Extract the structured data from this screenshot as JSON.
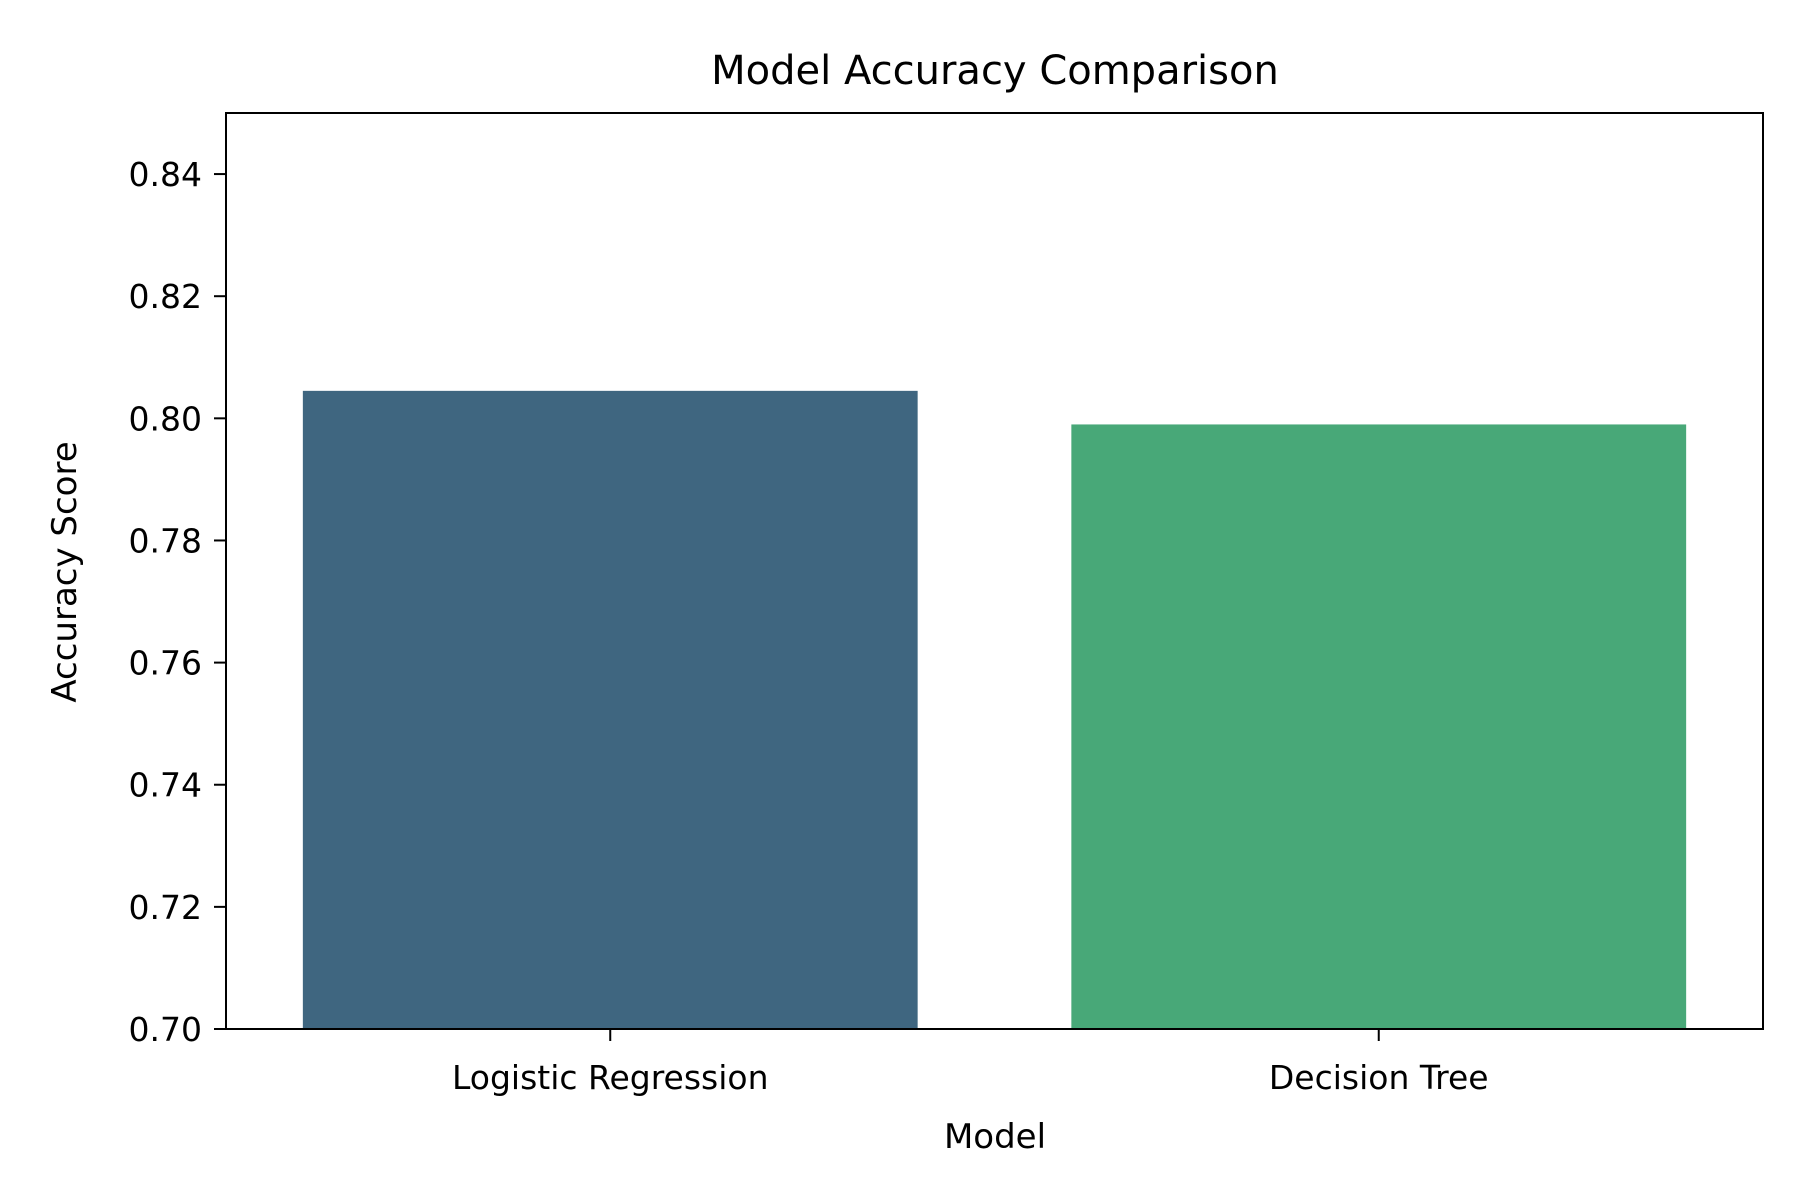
{
  "chart_data": {
    "type": "bar",
    "title": "Model Accuracy Comparison",
    "xlabel": "Model",
    "ylabel": "Accuracy Score",
    "categories": [
      "Logistic Regression",
      "Decision Tree"
    ],
    "values": [
      0.8045,
      0.799
    ],
    "ylim": [
      0.7,
      0.85
    ],
    "yticks": [
      0.7,
      0.72,
      0.74,
      0.76,
      0.78,
      0.8,
      0.82,
      0.84
    ],
    "ytick_labels": [
      "0.70",
      "0.72",
      "0.74",
      "0.76",
      "0.78",
      "0.80",
      "0.82",
      "0.84"
    ],
    "grid": false,
    "colors": [
      "#3f6680",
      "#48a878"
    ]
  }
}
